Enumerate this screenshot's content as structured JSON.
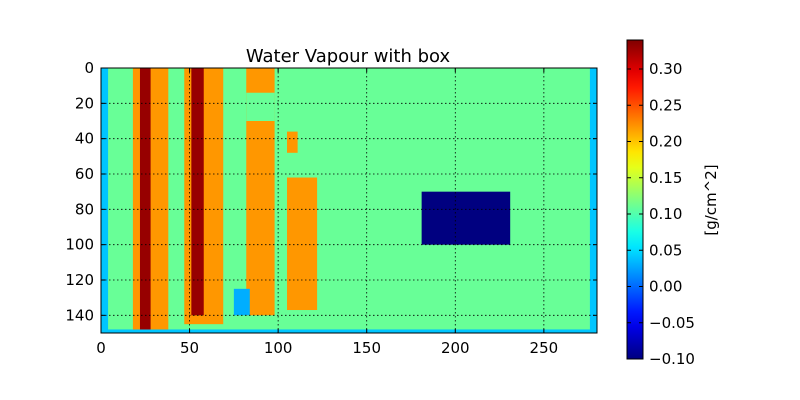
{
  "chart_data": {
    "type": "heatmap",
    "title": "Water Vapour with box",
    "xlabel": "",
    "ylabel": "",
    "xlim": [
      0,
      280
    ],
    "ylim": [
      150,
      0
    ],
    "grid": true,
    "x_ticks": [
      0,
      50,
      100,
      150,
      200,
      250
    ],
    "y_ticks": [
      0,
      20,
      40,
      60,
      80,
      100,
      120,
      140
    ],
    "background_value": 0.11,
    "colorbar": {
      "label": "[g/cm^2]",
      "min": -0.1,
      "max": 0.34,
      "ticks": [
        -0.1,
        -0.05,
        0.0,
        0.05,
        0.1,
        0.15,
        0.2,
        0.25,
        0.3
      ],
      "tick_labels": [
        "−0.10",
        "−0.05",
        "0.00",
        "0.05",
        "0.10",
        "0.15",
        "0.20",
        "0.25",
        "0.30"
      ],
      "colormap": "jet"
    },
    "regions": [
      {
        "name": "left-edge-strip",
        "x": [
          0,
          4
        ],
        "y": [
          0,
          148
        ],
        "value": 0.04
      },
      {
        "name": "right-edge-strip",
        "x": [
          276,
          280
        ],
        "y": [
          0,
          148
        ],
        "value": 0.04
      },
      {
        "name": "bottom-edge-strip",
        "x": [
          0,
          280
        ],
        "y": [
          148,
          150
        ],
        "value": 0.04
      },
      {
        "name": "band-1",
        "x": [
          18,
          38
        ],
        "y": [
          0,
          148
        ],
        "value": 0.22
      },
      {
        "name": "band-2",
        "x": [
          47,
          69
        ],
        "y": [
          0,
          145
        ],
        "value": 0.22
      },
      {
        "name": "band-3",
        "x": [
          82,
          98
        ],
        "y": [
          0,
          140
        ],
        "value": 0.22
      },
      {
        "name": "band-3-top-cutout",
        "x": [
          82,
          98
        ],
        "y": [
          14,
          30
        ],
        "value": 0.11
      },
      {
        "name": "band-4",
        "x": [
          105,
          122
        ],
        "y": [
          62,
          137
        ],
        "value": 0.22
      },
      {
        "name": "band-4-upper-fragment",
        "x": [
          105,
          111
        ],
        "y": [
          36,
          48
        ],
        "value": 0.22
      },
      {
        "name": "core-1",
        "x": [
          22,
          28
        ],
        "y": [
          0,
          148
        ],
        "value": 0.33
      },
      {
        "name": "core-2",
        "x": [
          51,
          58
        ],
        "y": [
          0,
          140
        ],
        "value": 0.33
      },
      {
        "name": "low-patch",
        "x": [
          75,
          84
        ],
        "y": [
          125,
          140
        ],
        "value": 0.03
      },
      {
        "name": "box",
        "x": [
          181,
          231
        ],
        "y": [
          70,
          100
        ],
        "value": -0.1
      }
    ]
  }
}
